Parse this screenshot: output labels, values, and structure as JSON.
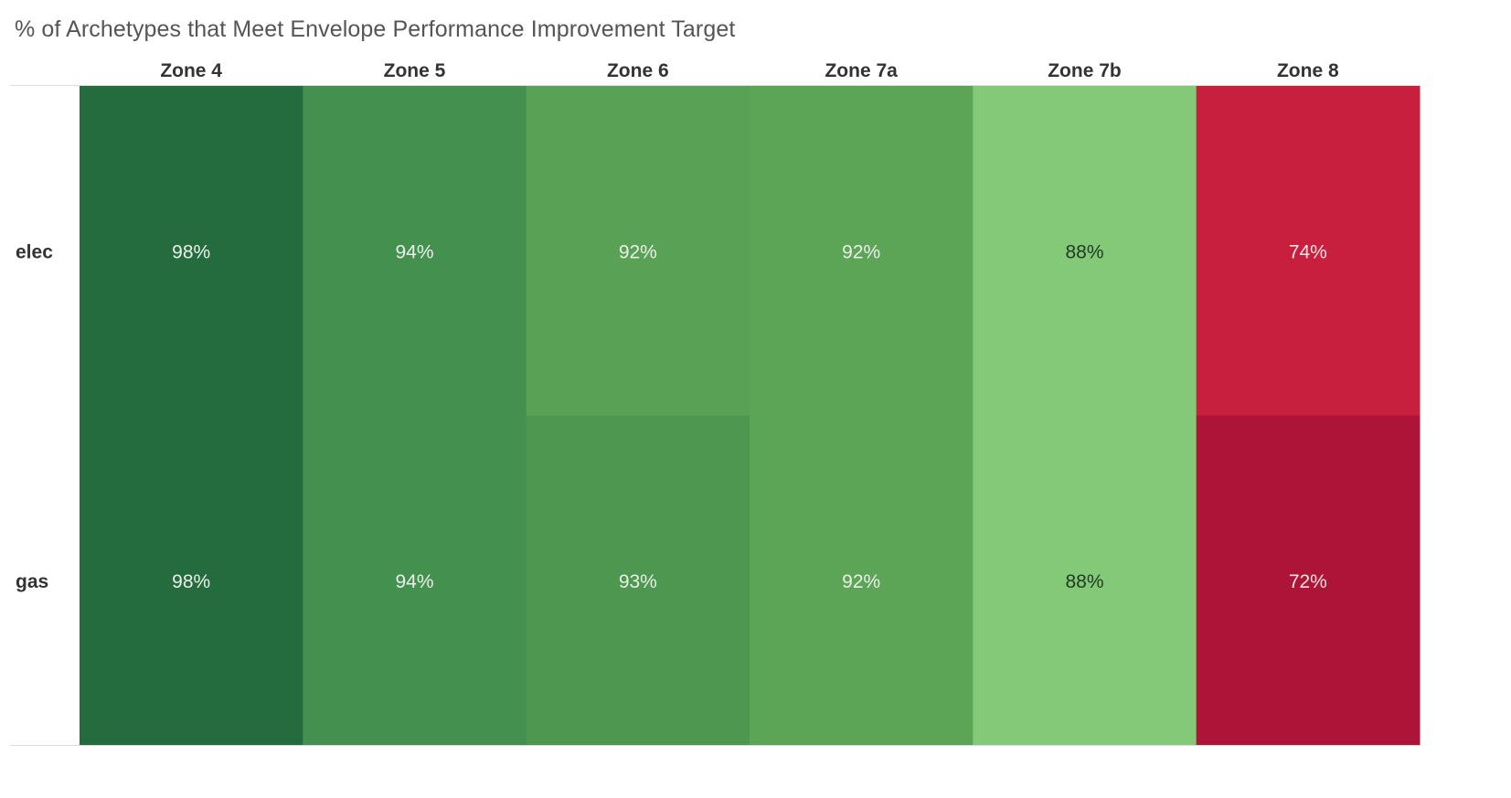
{
  "chart_data": {
    "type": "heatmap",
    "title": "% of Archetypes that Meet Envelope Performance Improvement Target",
    "columns": [
      "Zone 4",
      "Zone 5",
      "Zone 6",
      "Zone 7a",
      "Zone 7b",
      "Zone 8"
    ],
    "rows": [
      "elec",
      "gas"
    ],
    "values": [
      [
        98,
        94,
        92,
        92,
        88,
        74
      ],
      [
        98,
        94,
        93,
        92,
        88,
        72
      ]
    ],
    "value_format": "percent",
    "colors": [
      [
        "#246c3e",
        "#44914f",
        "#59a154",
        "#5ca456",
        "#84c977",
        "#c81f3e"
      ],
      [
        "#246c3e",
        "#44914f",
        "#4d9750",
        "#5ca456",
        "#84c977",
        "#ad1438"
      ]
    ],
    "label_colors": [
      [
        "#e8f0e8",
        "#e8f0e8",
        "#e8f0e8",
        "#e8f0e8",
        "#1f3a24",
        "#f3e3e6"
      ],
      [
        "#e8f0e8",
        "#e8f0e8",
        "#e8f0e8",
        "#e8f0e8",
        "#1f3a24",
        "#f3e3e6"
      ]
    ],
    "color_scale": "diverging red-green",
    "grid": false
  }
}
